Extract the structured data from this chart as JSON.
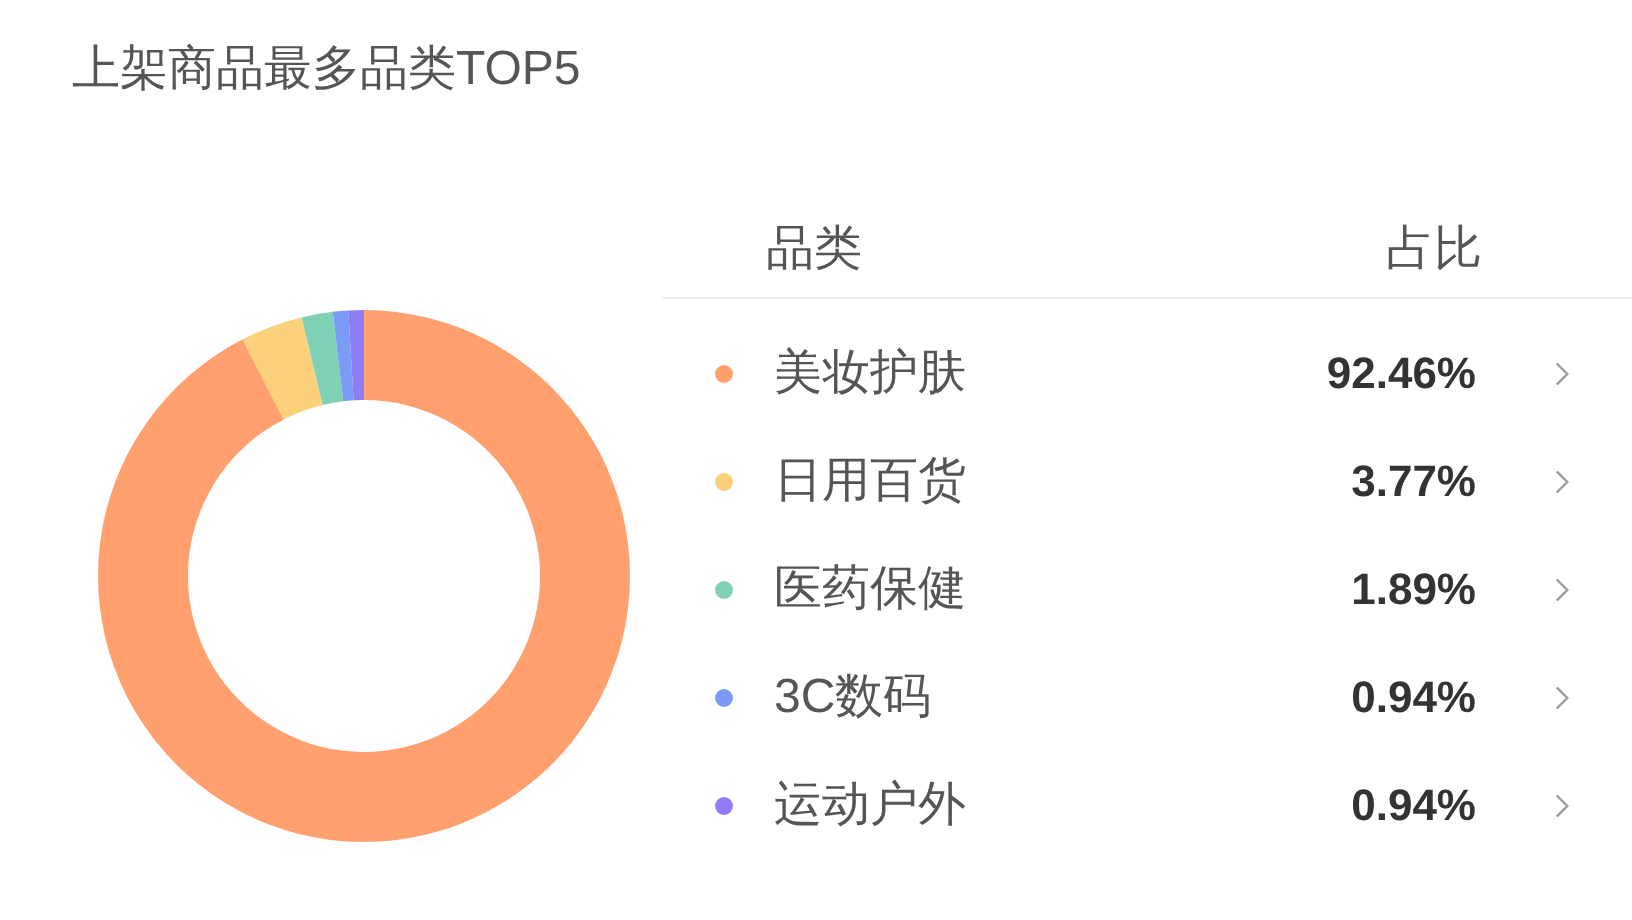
{
  "chart_data": {
    "type": "donut",
    "title": "上架商品最多品类TOP5",
    "categories": [
      "美妆护肤",
      "日用百货",
      "医药保健",
      "3C数码",
      "运动户外"
    ],
    "values": [
      92.46,
      3.77,
      1.89,
      0.94,
      0.94
    ],
    "colors": [
      "#ffa06e",
      "#fdd17c",
      "#7fd1b6",
      "#7b9cf6",
      "#8e7cf8"
    ],
    "value_labels": [
      "92.46%",
      "3.77%",
      "1.89%",
      "0.94%",
      "0.94%"
    ],
    "legend_title": "品类",
    "annotations": [
      "占比"
    ],
    "legend": "right"
  }
}
